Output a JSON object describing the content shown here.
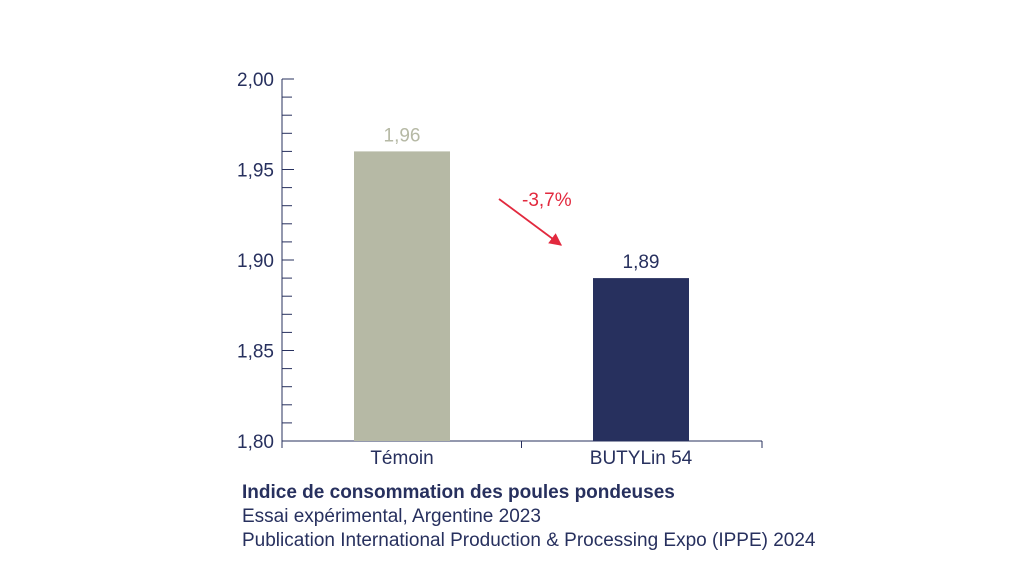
{
  "chart_data": {
    "type": "bar",
    "categories": [
      "Témoin",
      "BUTYLin 54"
    ],
    "values": [
      1.96,
      1.89
    ],
    "value_labels": [
      "1,96",
      "1,89"
    ],
    "bar_colors": [
      "#b6b9a5",
      "#27305e"
    ],
    "value_label_colors": [
      "#b6b9a5",
      "#27305e"
    ],
    "ylim": [
      1.8,
      2.0
    ],
    "yticks": [
      {
        "value": 1.8,
        "label": "1,80"
      },
      {
        "value": 1.85,
        "label": "1,85"
      },
      {
        "value": 1.9,
        "label": "1,90"
      },
      {
        "value": 1.95,
        "label": "1,95"
      },
      {
        "value": 2.0,
        "label": "2,00"
      }
    ],
    "minor_tick_step": 0.01,
    "grid": false,
    "annotation": {
      "text": "-3,7%",
      "color": "#e2293e",
      "from": "Témoin",
      "to": "BUTYLin 54"
    },
    "title": "Indice de consommation des poules pondeuses",
    "subtitle_lines": [
      "Essai expérimental, Argentine 2023",
      "Publication International Production & Processing Expo (IPPE) 2024"
    ],
    "axis_color": "#27305e"
  }
}
